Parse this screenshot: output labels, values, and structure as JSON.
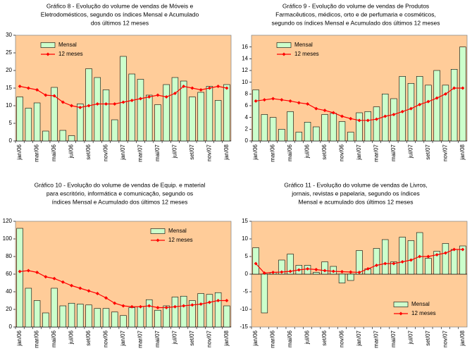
{
  "chart_data": [
    {
      "type": "bar-line",
      "title": [
        "Gráfico 8 - Evolução do volume de vendas de Móveis e",
        "Eletrodomésticos, segundo os índices Mensal e Acumulado",
        "dos últimos 12 meses"
      ],
      "categories": [
        "jan/06",
        null,
        "mar/06",
        null,
        "mai/06",
        null,
        "jul/06",
        null,
        "set/06",
        null,
        "nov/06",
        null,
        "jan/07",
        null,
        "mar/07",
        null,
        "mai/07",
        null,
        "jul/07",
        null,
        "set/07",
        null,
        "nov/07",
        null,
        "jan/08"
      ],
      "series": [
        {
          "name": "Mensal",
          "kind": "bar",
          "color": "#ccffcc",
          "values": [
            12.5,
            9.3,
            10.8,
            2.8,
            15.2,
            3.0,
            1.5,
            10.5,
            20.5,
            18.0,
            14.5,
            6.0,
            24.0,
            19.0,
            17.5,
            13.0,
            10.3,
            16.0,
            18.0,
            17.0,
            12.5,
            13.8,
            15.5,
            11.5,
            16.0
          ]
        },
        {
          "name": "12 meses",
          "kind": "line",
          "color": "#ff0000",
          "values": [
            15.5,
            15.0,
            14.5,
            13.0,
            12.8,
            11.0,
            10.0,
            9.5,
            10.0,
            10.5,
            10.5,
            10.5,
            11.0,
            11.5,
            12.0,
            12.5,
            13.0,
            12.5,
            13.5,
            15.5,
            15.0,
            14.5,
            15.0,
            15.5,
            15.0
          ]
        }
      ],
      "ylim": [
        0,
        30
      ],
      "yticks": [
        0,
        5,
        10,
        15,
        20,
        25,
        30
      ],
      "legend": "upper left"
    },
    {
      "type": "bar-line",
      "title": [
        "Gráfico 9 - Evolução do volume de vendas de Produtos",
        "Farmacêuticos, médicos, orto e de perfumaria e cosméticos,",
        "segundo os índices Mensal e Acumulado dos últimos 12 meses"
      ],
      "categories": [
        "jan/06",
        null,
        "mar/06",
        null,
        "mai/06",
        null,
        "jul/06",
        null,
        "set/06",
        null,
        "nov/06",
        null,
        "jan/07",
        null,
        "mar/07",
        null,
        "mai/07",
        null,
        "jul/07",
        null,
        "set/07",
        null,
        "nov/07",
        null,
        "jan/08"
      ],
      "series": [
        {
          "name": "Mensal",
          "kind": "bar",
          "color": "#ccffcc",
          "values": [
            8.7,
            4.5,
            4.0,
            2.0,
            5.0,
            1.5,
            3.2,
            2.4,
            4.5,
            4.7,
            3.3,
            1.5,
            4.8,
            5.0,
            5.8,
            8.0,
            7.2,
            11.0,
            9.8,
            11.0,
            9.5,
            12.0,
            9.5,
            12.2,
            16.0
          ]
        },
        {
          "name": "12 meses",
          "kind": "line",
          "color": "#ff0000",
          "values": [
            6.8,
            7.0,
            7.2,
            7.0,
            6.8,
            6.5,
            6.3,
            5.5,
            5.2,
            4.8,
            4.2,
            3.8,
            3.5,
            3.5,
            3.7,
            4.2,
            4.5,
            5.0,
            5.5,
            6.2,
            6.7,
            7.3,
            8.0,
            9.0,
            9.0
          ]
        }
      ],
      "ylim": [
        0,
        18
      ],
      "yticks": [
        0,
        2,
        4,
        6,
        8,
        10,
        12,
        14,
        16
      ],
      "legend": "upper left"
    },
    {
      "type": "bar-line",
      "title": [
        "Gráfico 10 - Evolução do volume de vendas de Equip. e material",
        "para escritório, informática e comunicação, segundo os",
        "índices Mensal e Acumulado dos últimos 12 meses"
      ],
      "categories": [
        "jan/06",
        null,
        "mar/06",
        null,
        "mai/06",
        null,
        "jul/06",
        null,
        "set/06",
        null,
        "nov/06",
        null,
        "jan/07",
        null,
        "mar/07",
        null,
        "mai/07",
        null,
        "jul/07",
        null,
        "set/07",
        null,
        "nov/07",
        null,
        "jan/08"
      ],
      "series": [
        {
          "name": "Mensal",
          "kind": "bar",
          "color": "#ccffcc",
          "values": [
            112,
            44,
            30,
            16,
            44,
            24,
            27,
            26,
            25,
            21,
            21,
            17,
            13,
            22,
            23,
            31,
            19,
            24,
            34,
            35,
            30,
            38,
            37,
            39,
            24
          ]
        },
        {
          "name": "12 meses",
          "kind": "line",
          "color": "#ff0000",
          "values": [
            63,
            64,
            62,
            57,
            55,
            51,
            47,
            44,
            41,
            38,
            33,
            27,
            24,
            23,
            23,
            24,
            22,
            22,
            23,
            24,
            25,
            26,
            28,
            30,
            30
          ]
        }
      ],
      "ylim": [
        0,
        120
      ],
      "yticks": [
        0,
        20,
        40,
        60,
        80,
        100,
        120
      ],
      "legend": "upper right"
    },
    {
      "type": "bar-line",
      "title": [
        "Gráfico 11 - Evolução do volume de vendas de Livros,",
        "jornais, revistas e papelaria, segundo os índices",
        "Mensal e acumulado dos últimos 12 meses"
      ],
      "categories": [
        "jan/06",
        null,
        "mar/06",
        null,
        "mai/06",
        null,
        "jul/06",
        null,
        "set/06",
        null,
        "nov/06",
        null,
        "jan/07",
        null,
        "mar/07",
        null,
        "mai/07",
        null,
        "jul/07",
        null,
        "set/07",
        null,
        "nov/07",
        null,
        "jan/08"
      ],
      "series": [
        {
          "name": "Mensal",
          "kind": "bar",
          "color": "#ccffcc",
          "values": [
            7.5,
            -11.0,
            0.5,
            4.0,
            5.7,
            2.5,
            2.5,
            0.5,
            3.5,
            2.2,
            -2.5,
            -1.8,
            6.7,
            1.5,
            7.3,
            9.8,
            3.5,
            10.5,
            9.5,
            11.8,
            4.5,
            6.5,
            8.7,
            7.0,
            8.0
          ]
        },
        {
          "name": "12 meses",
          "kind": "line",
          "color": "#ff0000",
          "values": [
            3.0,
            0.3,
            0.5,
            0.6,
            0.8,
            1.2,
            1.5,
            1.3,
            1.0,
            0.8,
            0.7,
            0.6,
            0.5,
            1.5,
            2.5,
            3.0,
            3.0,
            3.5,
            4.0,
            5.0,
            5.0,
            5.5,
            6.0,
            7.0,
            7.0
          ]
        }
      ],
      "ylim": [
        -15,
        15
      ],
      "yticks": [
        -15,
        -10,
        -5,
        0,
        5,
        10,
        15
      ],
      "legend": "lower right"
    }
  ]
}
